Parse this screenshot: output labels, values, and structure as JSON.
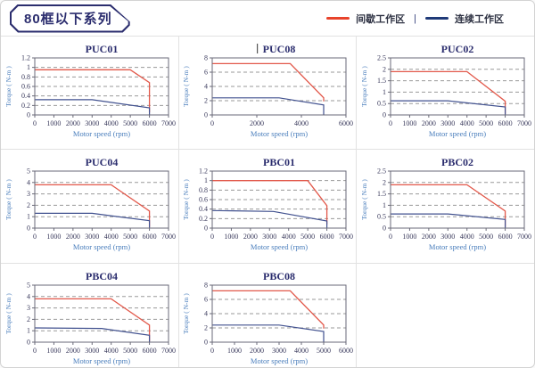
{
  "header": {
    "series_title": "80框以下系列"
  },
  "legend": {
    "intermittent_label": "间歇工作区",
    "continuous_label": "连续工作区",
    "separator": "|",
    "intermittent_color": "#e8432b",
    "continuous_color": "#1f3a78"
  },
  "colors": {
    "accent_red": "#e8432b",
    "curve_red": "#e2584a",
    "navy": "#2b2d6e",
    "curve_navy": "#41518f",
    "axis_label_blue": "#4a7ebc",
    "tick_text": "#3a3a5c",
    "grid_gray": "#9a9a9a",
    "frame_gray": "#6a6a78",
    "cursor_gray": "#555555"
  },
  "chart_data": [
    {
      "type": "line",
      "title": "PUC01",
      "title_cursor": false,
      "xlabel": "Motor speed (rpm)",
      "ylabel": "Torque ( N-m )",
      "xlim": [
        0,
        7000
      ],
      "xticks": [
        0,
        1000,
        2000,
        3000,
        4000,
        5000,
        6000,
        7000
      ],
      "ylim": [
        0,
        1.2
      ],
      "yticks": [
        0,
        0.2,
        0.4,
        0.6,
        0.8,
        1,
        1.2
      ],
      "grid": "dashed",
      "legend_position": "top-right-of-page",
      "series": [
        {
          "name": "间歇工作区",
          "color": "red",
          "points": [
            [
              0,
              0.95
            ],
            [
              5000,
              0.95
            ],
            [
              6000,
              0.68
            ],
            [
              6000,
              0.05
            ]
          ]
        },
        {
          "name": "连续工作区",
          "color": "navy",
          "points": [
            [
              0,
              0.32
            ],
            [
              3000,
              0.32
            ],
            [
              6000,
              0.15
            ],
            [
              6000,
              0
            ]
          ]
        }
      ]
    },
    {
      "type": "line",
      "title": "PUC08",
      "title_cursor": true,
      "xlabel": "Motor speed (rpm)",
      "ylabel": "Torque ( N-m )",
      "xlim": [
        0,
        6000
      ],
      "xticks": [
        0,
        2000,
        4000,
        6000
      ],
      "ylim": [
        0,
        8
      ],
      "yticks": [
        0,
        2,
        4,
        6,
        8
      ],
      "grid": "dashed",
      "series": [
        {
          "name": "间歇工作区",
          "color": "red",
          "points": [
            [
              0,
              7.2
            ],
            [
              3500,
              7.2
            ],
            [
              5000,
              2.4
            ],
            [
              5000,
              1.9
            ]
          ]
        },
        {
          "name": "连续工作区",
          "color": "navy",
          "points": [
            [
              0,
              2.4
            ],
            [
              3000,
              2.4
            ],
            [
              5000,
              1.4
            ],
            [
              5000,
              0
            ]
          ]
        }
      ]
    },
    {
      "type": "line",
      "title": "PUC02",
      "title_cursor": false,
      "xlabel": "Motor speed (rpm)",
      "ylabel": "Torque ( N-m )",
      "xlim": [
        0,
        7000
      ],
      "xticks": [
        0,
        1000,
        2000,
        3000,
        4000,
        5000,
        6000,
        7000
      ],
      "ylim": [
        0,
        2.5
      ],
      "yticks": [
        0,
        0.5,
        1,
        1.5,
        2,
        2.5
      ],
      "grid": "dashed",
      "series": [
        {
          "name": "间歇工作区",
          "color": "red",
          "points": [
            [
              0,
              1.9
            ],
            [
              4000,
              1.9
            ],
            [
              6000,
              0.6
            ],
            [
              6000,
              0.05
            ]
          ]
        },
        {
          "name": "连续工作区",
          "color": "navy",
          "points": [
            [
              0,
              0.62
            ],
            [
              3000,
              0.62
            ],
            [
              6000,
              0.35
            ],
            [
              6000,
              0
            ]
          ]
        }
      ]
    },
    {
      "type": "line",
      "title": "PUC04",
      "title_cursor": false,
      "xlabel": "Motor speed (rpm)",
      "ylabel": "Torque ( N-m )",
      "xlim": [
        0,
        7000
      ],
      "xticks": [
        0,
        1000,
        2000,
        3000,
        4000,
        5000,
        6000,
        7000
      ],
      "ylim": [
        0,
        5
      ],
      "yticks": [
        0,
        1,
        2,
        3,
        4,
        5
      ],
      "grid": "dashed",
      "series": [
        {
          "name": "间歇工作区",
          "color": "red",
          "points": [
            [
              0,
              3.8
            ],
            [
              4000,
              3.8
            ],
            [
              6000,
              1.5
            ],
            [
              6000,
              0.1
            ]
          ]
        },
        {
          "name": "连续工作区",
          "color": "navy",
          "points": [
            [
              0,
              1.3
            ],
            [
              3000,
              1.3
            ],
            [
              6000,
              0.65
            ],
            [
              6000,
              0
            ]
          ]
        }
      ]
    },
    {
      "type": "line",
      "title": "PBC01",
      "title_cursor": false,
      "xlabel": "Motor speed (rpm)",
      "ylabel": "Torque ( N-m )",
      "xlim": [
        0,
        7000
      ],
      "xticks": [
        0,
        1000,
        2000,
        3000,
        4000,
        5000,
        6000,
        7000
      ],
      "ylim": [
        0,
        1.2
      ],
      "yticks": [
        0,
        0.2,
        0.4,
        0.6,
        0.8,
        1,
        1.2
      ],
      "grid": "dashed",
      "series": [
        {
          "name": "间歇工作区",
          "color": "red",
          "points": [
            [
              0,
              1.0
            ],
            [
              5000,
              1.0
            ],
            [
              6000,
              0.47
            ],
            [
              6000,
              0.08
            ]
          ]
        },
        {
          "name": "连续工作区",
          "color": "navy",
          "points": [
            [
              0,
              0.37
            ],
            [
              3200,
              0.35
            ],
            [
              6000,
              0.15
            ],
            [
              6000,
              0
            ]
          ]
        }
      ]
    },
    {
      "type": "line",
      "title": "PBC02",
      "title_cursor": false,
      "xlabel": "Motor speed (rpm)",
      "ylabel": "Torque ( N-m )",
      "xlim": [
        0,
        7000
      ],
      "xticks": [
        0,
        1000,
        2000,
        3000,
        4000,
        5000,
        6000,
        7000
      ],
      "ylim": [
        0,
        2.5
      ],
      "yticks": [
        0,
        0.5,
        1,
        1.5,
        2,
        2.5
      ],
      "grid": "dashed",
      "series": [
        {
          "name": "间歇工作区",
          "color": "red",
          "points": [
            [
              0,
              1.9
            ],
            [
              4000,
              1.9
            ],
            [
              6000,
              0.75
            ],
            [
              6000,
              0.05
            ]
          ]
        },
        {
          "name": "连续工作区",
          "color": "navy",
          "points": [
            [
              0,
              0.62
            ],
            [
              3000,
              0.62
            ],
            [
              6000,
              0.38
            ],
            [
              6000,
              0
            ]
          ]
        }
      ]
    },
    {
      "type": "line",
      "title": "PBC04",
      "title_cursor": false,
      "xlabel": "Motor speed (rpm)",
      "ylabel": "Torque ( N-m )",
      "xlim": [
        0,
        7000
      ],
      "xticks": [
        0,
        1000,
        2000,
        3000,
        4000,
        5000,
        6000,
        7000
      ],
      "ylim": [
        0,
        5
      ],
      "yticks": [
        0,
        1,
        2,
        3,
        4,
        5
      ],
      "grid": "dashed",
      "series": [
        {
          "name": "间歇工作区",
          "color": "red",
          "points": [
            [
              0,
              3.8
            ],
            [
              4000,
              3.8
            ],
            [
              6000,
              1.5
            ],
            [
              6000,
              0.1
            ]
          ]
        },
        {
          "name": "连续工作区",
          "color": "navy",
          "points": [
            [
              0,
              1.25
            ],
            [
              3500,
              1.2
            ],
            [
              6000,
              0.6
            ],
            [
              6000,
              0
            ]
          ]
        }
      ]
    },
    {
      "type": "line",
      "title": "PBC08",
      "title_cursor": false,
      "xlabel": "Motor speed (rpm)",
      "ylabel": "Torque ( N-m )",
      "xlim": [
        0,
        6000
      ],
      "xticks": [
        0,
        1000,
        2000,
        3000,
        4000,
        5000,
        6000
      ],
      "ylim": [
        0,
        8
      ],
      "yticks": [
        0,
        2,
        4,
        6,
        8
      ],
      "grid": "dashed",
      "series": [
        {
          "name": "间歇工作区",
          "color": "red",
          "points": [
            [
              0,
              7.2
            ],
            [
              3500,
              7.2
            ],
            [
              5000,
              2.4
            ],
            [
              5000,
              1.9
            ]
          ]
        },
        {
          "name": "连续工作区",
          "color": "navy",
          "points": [
            [
              0,
              2.4
            ],
            [
              3000,
              2.4
            ],
            [
              5000,
              1.5
            ],
            [
              5000,
              0
            ]
          ]
        }
      ]
    }
  ]
}
